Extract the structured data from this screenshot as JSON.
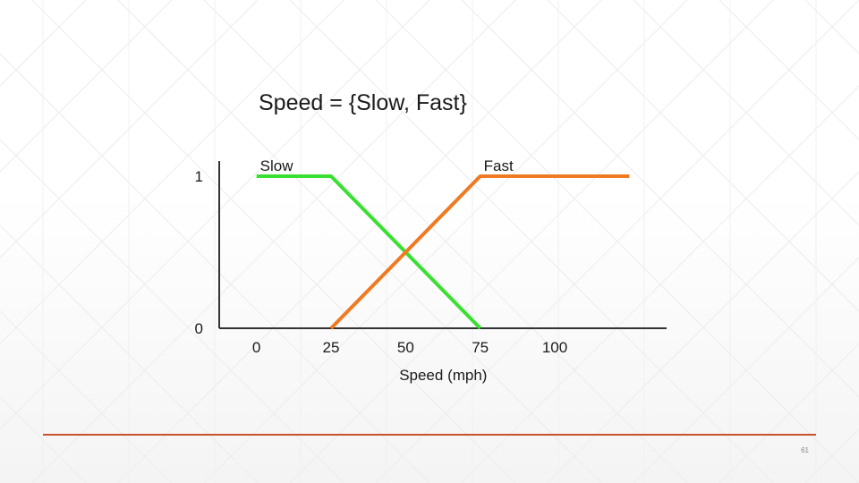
{
  "slide": {
    "title": "Speed = {Slow, Fast}",
    "page_number": "61",
    "accent_color": "#c8522a"
  },
  "chart_data": {
    "type": "line",
    "title": "",
    "xlabel": "Speed (mph)",
    "ylabel": "",
    "x_ticks": [
      0,
      25,
      50,
      75,
      100
    ],
    "y_ticks": [
      0,
      1
    ],
    "xlim": [
      -12.5,
      137.5
    ],
    "ylim": [
      0,
      1.1
    ],
    "grid": false,
    "series": [
      {
        "name": "Slow",
        "color": "#39e031",
        "x": [
          0,
          25,
          75
        ],
        "y": [
          1,
          1,
          0
        ]
      },
      {
        "name": "Fast",
        "color": "#f07a22",
        "x": [
          25,
          75,
          125
        ],
        "y": [
          0,
          1,
          1
        ]
      }
    ]
  }
}
